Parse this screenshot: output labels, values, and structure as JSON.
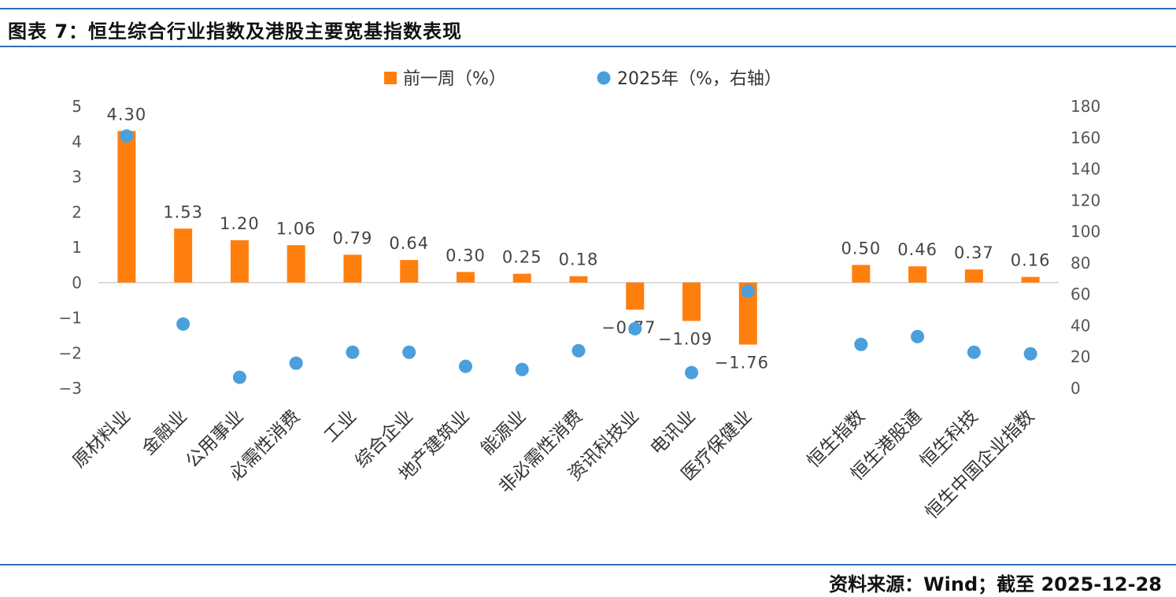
{
  "header": {
    "title": "图表 7：恒生综合行业指数及港股主要宽基指数表现"
  },
  "footer": {
    "source": "资料来源：Wind；截至 2025-12-28"
  },
  "colors": {
    "bar": "#ff7f0e",
    "dot": "#4a9fdc",
    "rule": "#2f6fb5"
  },
  "chart_data": {
    "type": "bar",
    "title": "",
    "xlabel": "",
    "ylabel": "",
    "categories": [
      "原材料业",
      "金融业",
      "公用事业",
      "必需性消费",
      "工业",
      "综合企业",
      "地产建筑业",
      "能源业",
      "非必需性消费",
      "资讯科技业",
      "电讯业",
      "医疗保健业",
      "",
      "恒生指数",
      "恒生港股通",
      "恒生科技",
      "恒生中国企业指数"
    ],
    "series": [
      {
        "name": "前一周（%）",
        "kind": "bar",
        "axis": "left",
        "values": [
          4.3,
          1.53,
          1.2,
          1.06,
          0.79,
          0.64,
          0.3,
          0.25,
          0.18,
          -0.77,
          -1.09,
          -1.76,
          null,
          0.5,
          0.46,
          0.37,
          0.16
        ],
        "labels": [
          "4.30",
          "1.53",
          "1.20",
          "1.06",
          "0.79",
          "0.64",
          "0.30",
          "0.25",
          "0.18",
          "−0.77",
          "−1.09",
          "−1.76",
          "",
          "0.50",
          "0.46",
          "0.37",
          "0.16"
        ]
      },
      {
        "name": "2025年（%，右轴）",
        "kind": "scatter",
        "axis": "right",
        "values": [
          161,
          41,
          7,
          16,
          23,
          23,
          14,
          12,
          24,
          38,
          10,
          62,
          null,
          28,
          33,
          23,
          22
        ]
      }
    ],
    "y_left": {
      "ylim": [
        -3,
        5
      ],
      "ticks": [
        "5",
        "4",
        "3",
        "2",
        "1",
        "0",
        "−1",
        "−2",
        "−3"
      ]
    },
    "y_right": {
      "ylim": [
        0,
        180
      ],
      "ticks": [
        "180",
        "160",
        "140",
        "120",
        "100",
        "80",
        "60",
        "40",
        "20",
        "0"
      ]
    },
    "legend": {
      "placement": "top-center",
      "items": [
        "前一周（%）",
        "2025年（%，右轴）"
      ]
    },
    "grid": false
  }
}
